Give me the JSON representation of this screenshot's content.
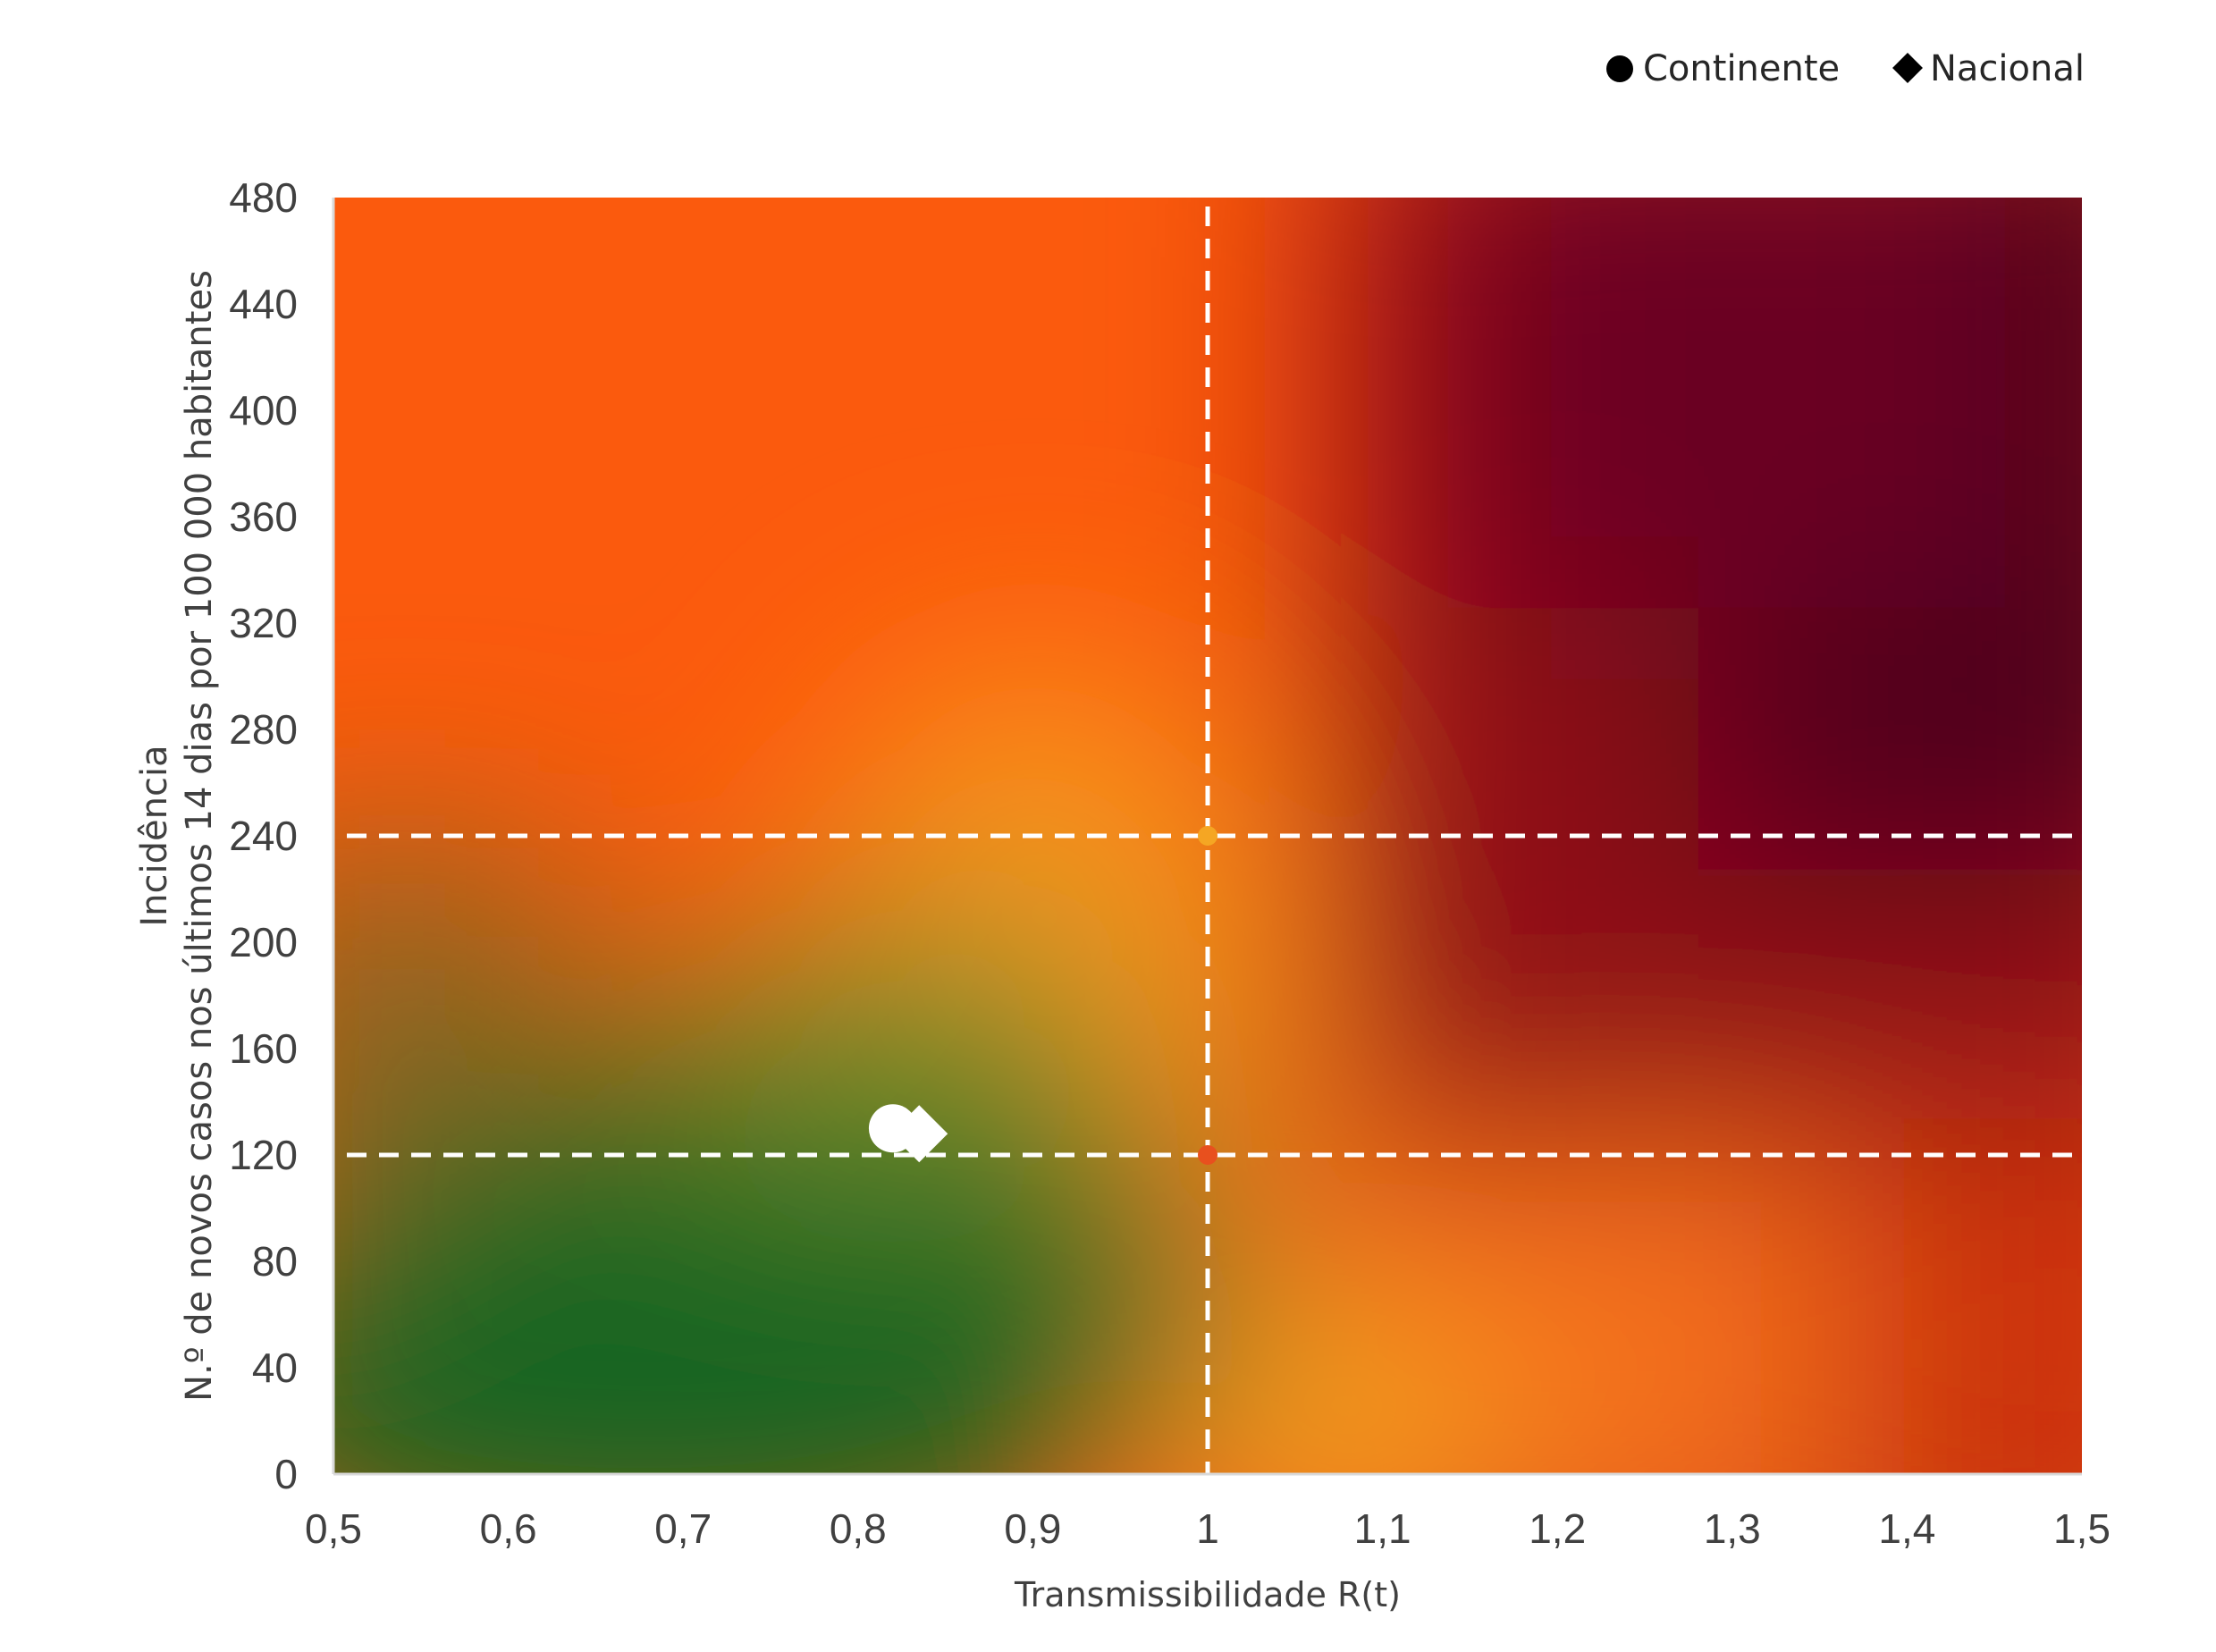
{
  "chart_data": {
    "type": "scatter",
    "title": "",
    "xlabel": "Transmissibilidade R(t)",
    "ylabel_line1": "Incidência",
    "ylabel_line2": "N.º de novos casos nos últimos 14 dias por 100 000 habitantes",
    "xlim": [
      0.5,
      1.5
    ],
    "ylim": [
      0,
      480
    ],
    "x_ticks": [
      "0,5",
      "0,6",
      "0,7",
      "0,8",
      "0,9",
      "1",
      "1,1",
      "1,2",
      "1,3",
      "1,4",
      "1,5"
    ],
    "y_ticks": [
      "0",
      "40",
      "80",
      "120",
      "160",
      "200",
      "240",
      "280",
      "320",
      "360",
      "400",
      "440",
      "480"
    ],
    "grid": false,
    "legend_position": "top-right",
    "legend": [
      {
        "label": "Continente",
        "marker": "circle"
      },
      {
        "label": "Nacional",
        "marker": "diamond"
      }
    ],
    "reference_lines": {
      "x": [
        1
      ],
      "y": [
        120,
        240
      ]
    },
    "reference_points": [
      {
        "x": 1,
        "y": 240,
        "color": "#f5a623"
      },
      {
        "x": 1,
        "y": 120,
        "color": "#e8501e"
      }
    ],
    "series": [
      {
        "name": "Continente",
        "marker": "circle",
        "color": "#ffffff",
        "points": [
          {
            "x": 0.82,
            "y": 130
          }
        ]
      },
      {
        "name": "Nacional",
        "marker": "diamond",
        "color": "#ffffff",
        "points": [
          {
            "x": 0.835,
            "y": 128
          }
        ]
      }
    ],
    "background": "risk heatmap: green (low R, low incidence) through orange to dark red (high R, high incidence)"
  },
  "colors": {
    "green": "#1a6b26",
    "orange": "#fb5a0d",
    "amber": "#f7961d",
    "red": "#cc3010",
    "darkred": "#4c001d",
    "text": "#404040"
  }
}
